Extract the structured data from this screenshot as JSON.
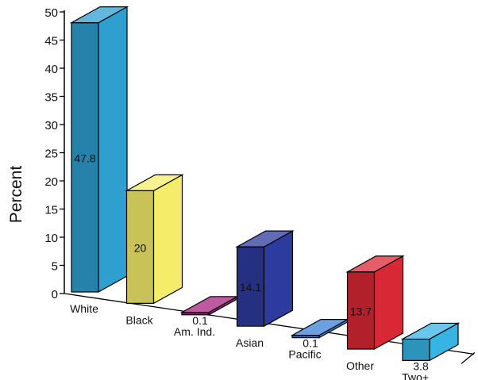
{
  "chart_data": {
    "type": "bar",
    "title": "",
    "xlabel": "",
    "ylabel": "Percent",
    "ylim": [
      0,
      50
    ],
    "yticks": [
      "0",
      "5",
      "10",
      "15",
      "20",
      "25",
      "30",
      "35",
      "40",
      "45",
      "50"
    ],
    "grid": false,
    "categories": [
      "White",
      "Black",
      "Am. Ind.",
      "Asian",
      "Pacific",
      "Other",
      "Two+"
    ],
    "values": [
      47.8,
      20,
      0.1,
      14.1,
      0.1,
      13.7,
      3.8
    ],
    "value_labels": [
      "47.8",
      "20",
      "0.1",
      "14.1",
      "0.1",
      "13.7",
      "3.8"
    ],
    "colors": [
      "#2f9fd0",
      "#f5ec6a",
      "#a8237f",
      "#2d3a9e",
      "#3a82d6",
      "#d92835",
      "#36b4e4"
    ]
  }
}
